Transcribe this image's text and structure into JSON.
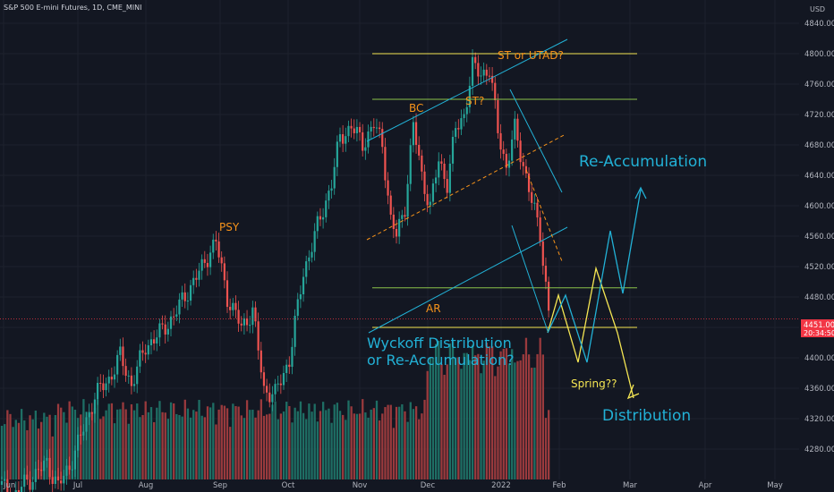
{
  "header": {
    "title": "S&P 500 E-mini Futures, 1D, CME_MINI",
    "currency": "USD"
  },
  "price_badge": {
    "price": "4451.00",
    "countdown": "20:34:50",
    "color": "#f23645"
  },
  "colors": {
    "background": "#131722",
    "up": "#26a69a",
    "down": "#ef5350",
    "vol_up": "#1e6e64",
    "vol_down": "#9a3a3d",
    "yellow": "#f5e653",
    "green_line": "#8bc34a",
    "cyan": "#22b1d6",
    "orange": "#f7931a",
    "price_line": "#f23645"
  },
  "annotations": {
    "psy": "PSY",
    "bc": "BC",
    "st": "ST?",
    "st_utad": "ST or UTAD?",
    "ar": "AR",
    "reaccumulation": "Re-Accumulation",
    "wyckoff_line1": "Wyckoff Distribution",
    "wyckoff_line2": "or Re-Accumulation?",
    "spring": "Spring??",
    "distribution": "Distribution"
  },
  "chart_data": {
    "type": "candlestick",
    "title": "S&P 500 E-mini Futures, 1D, CME_MINI",
    "y_unit": "USD",
    "ylim": [
      4235,
      4878
    ],
    "y_ticks": [
      4280,
      4320,
      4360,
      4400,
      4440,
      4480,
      4520,
      4560,
      4600,
      4640,
      4680,
      4720,
      4760,
      4800,
      4840
    ],
    "y_tick_labels": [
      "4280.00",
      "4320.00",
      "4360.00",
      "4400.00",
      "4440.00",
      "4480.00",
      "4520.00",
      "4560.00",
      "4600.00",
      "4640.00",
      "4680.00",
      "4720.00",
      "4760.00",
      "4800.00",
      "4840.00"
    ],
    "x_ticks": [
      "Jun",
      "Jul",
      "Aug",
      "Sep",
      "Oct",
      "Nov",
      "Dec",
      "2022",
      "Feb",
      "Mar",
      "Apr",
      "May"
    ],
    "grid": true,
    "anchors": [
      [
        0,
        4232
      ],
      [
        4,
        4215
      ],
      [
        8,
        4235
      ],
      [
        12,
        4246
      ],
      [
        16,
        4262
      ],
      [
        20,
        4230
      ],
      [
        24,
        4258
      ],
      [
        28,
        4296
      ],
      [
        33,
        4350
      ],
      [
        38,
        4372
      ],
      [
        42,
        4402
      ],
      [
        46,
        4365
      ],
      [
        51,
        4415
      ],
      [
        56,
        4432
      ],
      [
        61,
        4455
      ],
      [
        66,
        4488
      ],
      [
        71,
        4518
      ],
      [
        74,
        4542
      ],
      [
        76,
        4552
      ],
      [
        80,
        4480
      ],
      [
        85,
        4440
      ],
      [
        89,
        4462
      ],
      [
        93,
        4358
      ],
      [
        97,
        4352
      ],
      [
        102,
        4398
      ],
      [
        107,
        4512
      ],
      [
        112,
        4572
      ],
      [
        117,
        4630
      ],
      [
        120,
        4690
      ],
      [
        124,
        4704
      ],
      [
        128,
        4682
      ],
      [
        132,
        4706
      ],
      [
        135,
        4682
      ],
      [
        138,
        4580
      ],
      [
        140,
        4560
      ],
      [
        143,
        4600
      ],
      [
        146,
        4705
      ],
      [
        149,
        4640
      ],
      [
        152,
        4598
      ],
      [
        155,
        4660
      ],
      [
        158,
        4630
      ],
      [
        161,
        4700
      ],
      [
        164,
        4720
      ],
      [
        167,
        4782
      ],
      [
        170,
        4775
      ],
      [
        173,
        4778
      ],
      [
        176,
        4700
      ],
      [
        179,
        4650
      ],
      [
        182,
        4700
      ],
      [
        185,
        4655
      ],
      [
        188,
        4605
      ],
      [
        191,
        4565
      ],
      [
        194,
        4460
      ]
    ],
    "volume_baseline": 0.18,
    "volume_notes": "Relative daily volume bars along the bottom, highest in December",
    "levels": [
      {
        "name": "upper-yellow",
        "value": 4800
      },
      {
        "name": "upper-green",
        "value": 4740
      },
      {
        "name": "lower-green",
        "value": 4492
      },
      {
        "name": "lower-yellow",
        "value": 4440
      }
    ],
    "last_price": 4451.0
  }
}
